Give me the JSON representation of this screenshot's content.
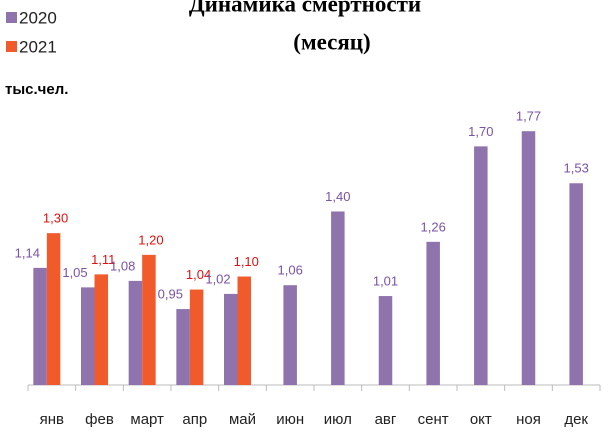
{
  "chart_data": {
    "type": "bar",
    "title": [
      "Динамика смертности",
      "(месяц)"
    ],
    "y_label": "тыс.чел.",
    "categories": [
      "янв",
      "фев",
      "март",
      "апр",
      "май",
      "июн",
      "июл",
      "авг",
      "сент",
      "окт",
      "ноя",
      "дек"
    ],
    "series": [
      {
        "name": "2020",
        "color": "#8e73ad",
        "values": [
          1.14,
          1.05,
          1.08,
          0.95,
          1.02,
          1.06,
          1.4,
          1.01,
          1.26,
          1.7,
          1.77,
          1.53
        ],
        "value_labels": [
          "1,14",
          "1,05",
          "1,08",
          "0,95",
          "1,02",
          "1,06",
          "1,40",
          "1,01",
          "1,26",
          "1,70",
          "1,77",
          "1,53"
        ]
      },
      {
        "name": "2021",
        "color": "#f15a2b",
        "values": [
          1.3,
          1.11,
          1.2,
          1.04,
          1.1,
          null,
          null,
          null,
          null,
          null,
          null,
          null
        ],
        "value_labels": [
          "1,30",
          "1,11",
          "1,20",
          "1,04",
          "1,10",
          null,
          null,
          null,
          null,
          null,
          null,
          null
        ]
      }
    ],
    "ylim": [
      0.6,
      1.9
    ],
    "legend": "top-left"
  }
}
